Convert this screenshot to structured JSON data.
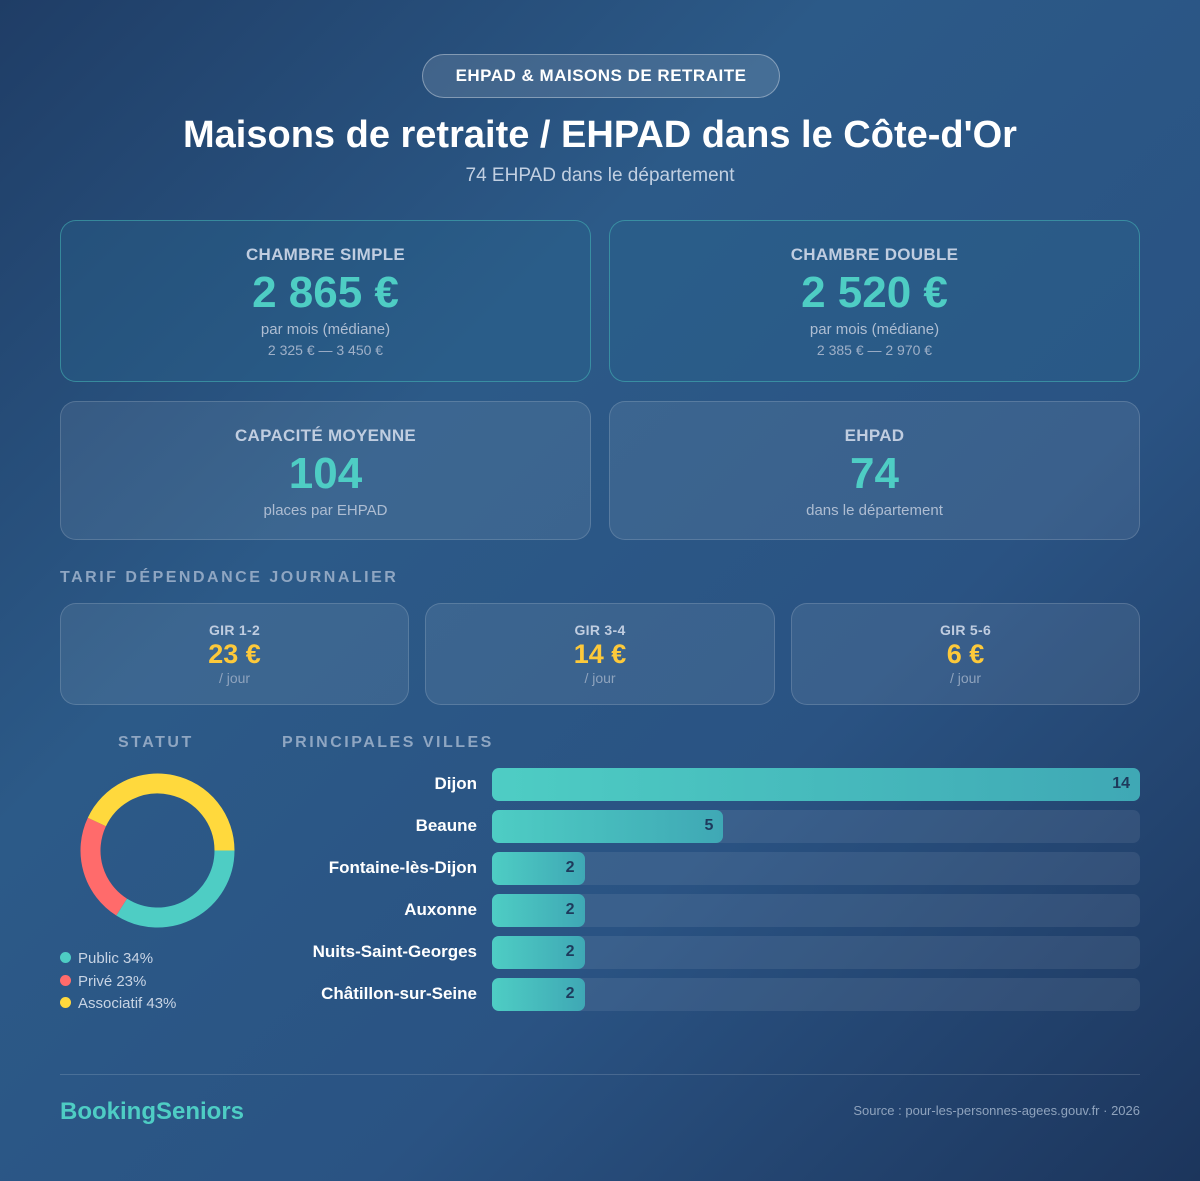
{
  "header": {
    "badge": "EHPAD & MAISONS DE RETRAITE",
    "title": "Maisons de retraite / EHPAD dans le Côte-d'Or",
    "subtitle": "74 EHPAD dans le département"
  },
  "cards": [
    {
      "label": "CHAMBRE SIMPLE",
      "value": "2 865 €",
      "note": "par mois (médiane)",
      "range": "2 325 € — 3 450 €"
    },
    {
      "label": "CHAMBRE DOUBLE",
      "value": "2 520 €",
      "note": "par mois (médiane)",
      "range": "2 385 € — 2 970 €"
    },
    {
      "label": "CAPACITÉ MOYENNE",
      "value": "104",
      "note": "places par EHPAD"
    },
    {
      "label": "EHPAD",
      "value": "74",
      "note": "dans le département"
    }
  ],
  "gir": {
    "title": "TARIF DÉPENDANCE JOURNALIER",
    "items": [
      {
        "label": "GIR 1-2",
        "value": "23 €",
        "unit": "/ jour"
      },
      {
        "label": "GIR 3-4",
        "value": "14 €",
        "unit": "/ jour"
      },
      {
        "label": "GIR 5-6",
        "value": "6 €",
        "unit": "/ jour"
      }
    ]
  },
  "chart_data": [
    {
      "type": "pie",
      "variant": "donut",
      "title": "STATUT",
      "categories": [
        "Public",
        "Privé",
        "Associatif"
      ],
      "values": [
        34,
        23,
        43
      ],
      "labels": [
        "Public 34%",
        "Privé 23%",
        "Associatif 43%"
      ],
      "colors": [
        "#4ecdc4",
        "#ff6b6b",
        "#ffd93d"
      ]
    },
    {
      "type": "bar",
      "orientation": "horizontal",
      "title": "PRINCIPALES VILLES",
      "categories": [
        "Dijon",
        "Beaune",
        "Fontaine-lès-Dijon",
        "Auxonne",
        "Nuits-Saint-Georges",
        "Châtillon-sur-Seine"
      ],
      "values": [
        14,
        5,
        2,
        2,
        2,
        2
      ],
      "color": "#4ecdc4"
    }
  ],
  "footer": {
    "brand": "BookingSeniors",
    "source": "Source : pour-les-personnes-agees.gouv.fr · 2026"
  }
}
